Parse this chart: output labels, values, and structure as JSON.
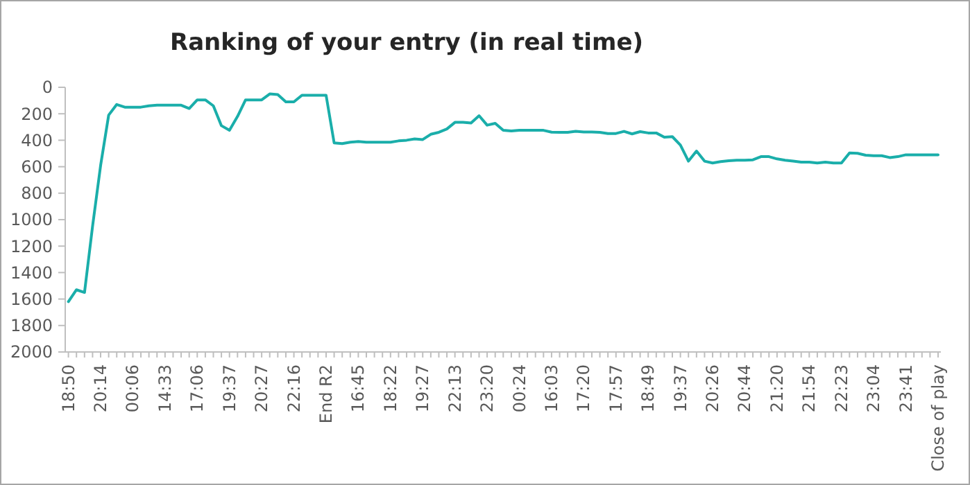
{
  "chart_data": {
    "type": "line",
    "title": "Ranking of your entry (in real time)",
    "categories": [
      "18:50",
      null,
      null,
      null,
      "20:14",
      null,
      null,
      null,
      "00:06",
      null,
      null,
      null,
      "14:33",
      null,
      null,
      null,
      "17:06",
      null,
      null,
      null,
      "19:37",
      null,
      null,
      null,
      "20:27",
      null,
      null,
      null,
      "22:16",
      null,
      null,
      null,
      "End R2",
      null,
      null,
      null,
      "16:45",
      null,
      null,
      null,
      "18:22",
      null,
      null,
      null,
      "19:27",
      null,
      null,
      null,
      "22:13",
      null,
      null,
      null,
      "23:20",
      null,
      null,
      null,
      "00:24",
      null,
      null,
      null,
      "16:03",
      null,
      null,
      null,
      "17:20",
      null,
      null,
      null,
      "17:57",
      null,
      null,
      null,
      "18:49",
      null,
      null,
      null,
      "19:37",
      null,
      null,
      null,
      "20:26",
      null,
      null,
      null,
      "20:44",
      null,
      null,
      null,
      "21:20",
      null,
      null,
      null,
      "21:54",
      null,
      null,
      null,
      "22:23",
      null,
      null,
      null,
      "23:04",
      null,
      null,
      null,
      "23:41",
      null,
      null,
      null,
      "Close of play"
    ],
    "series": [
      {
        "color": "#1aaeaa",
        "values": [
          1620,
          1530,
          1550,
          1050,
          590,
          210,
          130,
          150,
          150,
          150,
          140,
          135,
          135,
          135,
          135,
          160,
          95,
          95,
          140,
          290,
          325,
          220,
          95,
          95,
          95,
          50,
          55,
          110,
          110,
          60,
          60,
          60,
          60,
          420,
          425,
          415,
          410,
          415,
          415,
          415,
          415,
          405,
          400,
          390,
          395,
          355,
          340,
          315,
          265,
          265,
          270,
          215,
          286,
          272,
          325,
          330,
          325,
          325,
          325,
          325,
          339,
          340,
          340,
          333,
          338,
          338,
          340,
          349,
          349,
          333,
          352,
          335,
          345,
          345,
          377,
          373,
          436,
          558,
          482,
          558,
          572,
          562,
          555,
          551,
          551,
          548,
          524,
          524,
          541,
          551,
          558,
          565,
          565,
          572,
          565,
          572,
          572,
          496,
          499,
          513,
          517,
          517,
          531,
          524,
          510,
          510,
          510,
          510,
          510
        ]
      }
    ],
    "ylim": [
      2000,
      0
    ],
    "yticks": [
      0,
      200,
      400,
      600,
      800,
      1000,
      1200,
      1400,
      1600,
      1800,
      2000
    ],
    "grid": false,
    "marker": "none",
    "line_style": "solid"
  }
}
